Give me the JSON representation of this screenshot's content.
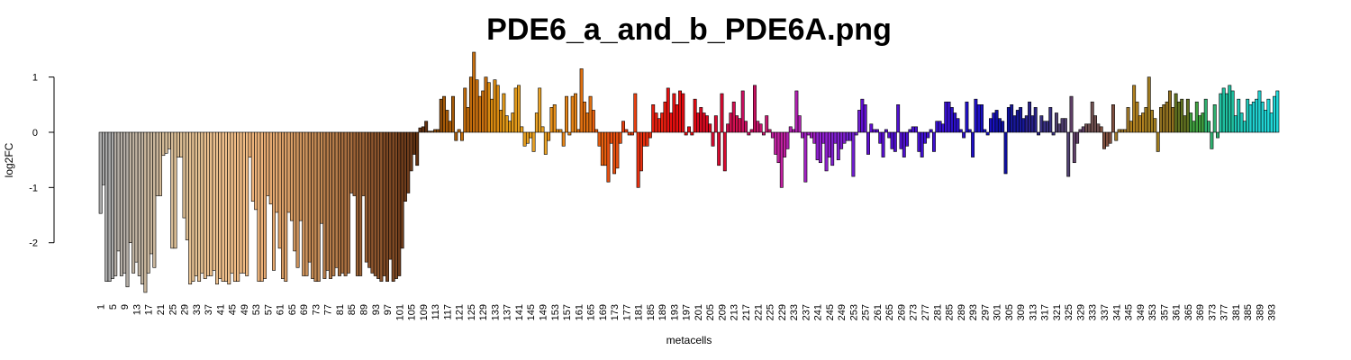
{
  "chart_data": {
    "type": "bar",
    "title": "PDE6_a_and_b_PDE6A.png",
    "xlabel": "metacells",
    "ylabel": "log2FC",
    "ylim": [
      -2.95,
      1.45
    ],
    "yticks": [
      -2,
      -1,
      0,
      1
    ],
    "categories": [
      "1",
      null,
      null,
      null,
      "5",
      null,
      null,
      null,
      "9",
      null,
      null,
      null,
      "13",
      null,
      null,
      null,
      "17",
      null,
      null,
      null,
      "21",
      null,
      null,
      null,
      "25",
      null,
      null,
      null,
      "29",
      null,
      null,
      null,
      "33",
      null,
      null,
      null,
      "37",
      null,
      null,
      null,
      "41",
      null,
      null,
      null,
      "45",
      null,
      null,
      null,
      "49",
      null,
      null,
      null,
      "53",
      null,
      null,
      null,
      "57",
      null,
      null,
      null,
      "61",
      null,
      null,
      null,
      "65",
      null,
      null,
      null,
      "69",
      null,
      null,
      null,
      "73",
      null,
      null,
      null,
      "77",
      null,
      null,
      null,
      "81",
      null,
      null,
      null,
      "85",
      null,
      null,
      null,
      "89",
      null,
      null,
      null,
      "93",
      null,
      null,
      null,
      "97",
      null,
      null,
      null,
      "101",
      null,
      null,
      null,
      "105",
      null,
      null,
      null,
      "109",
      null,
      null,
      null,
      "113",
      null,
      null,
      null,
      "117",
      null,
      null,
      null,
      "121",
      null,
      null,
      null,
      "125",
      null,
      null,
      null,
      "129",
      null,
      null,
      null,
      "133",
      null,
      null,
      null,
      "137",
      null,
      null,
      null,
      "141",
      null,
      null,
      null,
      "145",
      null,
      null,
      null,
      "149",
      null,
      null,
      null,
      "153",
      null,
      null,
      null,
      "157",
      null,
      null,
      null,
      "161",
      null,
      null,
      null,
      "165",
      null,
      null,
      null,
      "169",
      null,
      null,
      null,
      "173",
      null,
      null,
      null,
      "177",
      null,
      null,
      null,
      "181",
      null,
      null,
      null,
      "185",
      null,
      null,
      null,
      "189",
      null,
      null,
      null,
      "193",
      null,
      null,
      null,
      "197",
      null,
      null,
      null,
      "201",
      null,
      null,
      null,
      "205",
      null,
      null,
      null,
      "209",
      null,
      null,
      null,
      "213",
      null,
      null,
      null,
      "217",
      null,
      null,
      null,
      "221",
      null,
      null,
      null,
      "225",
      null,
      null,
      null,
      "229",
      null,
      null,
      null,
      "233",
      null,
      null,
      null,
      "237",
      null,
      null,
      null,
      "241",
      null,
      null,
      null,
      "245",
      null,
      null,
      null,
      "249",
      null,
      null,
      null,
      "253",
      null,
      null,
      null,
      "257",
      null,
      null,
      null,
      "261",
      null,
      null,
      null,
      "265",
      null,
      null,
      null,
      "269",
      null,
      null,
      null,
      "273",
      null,
      null,
      null,
      "277",
      null,
      null,
      null,
      "281",
      null,
      null,
      null,
      "285",
      null,
      null,
      null,
      "289",
      null,
      null,
      null,
      "293",
      null,
      null,
      null,
      "297",
      null,
      null,
      null,
      "301",
      null,
      null,
      null,
      "305",
      null,
      null,
      null,
      "309",
      null,
      null,
      null,
      "313",
      null,
      null,
      null,
      "317",
      null,
      null,
      null,
      "321",
      null,
      null,
      null,
      "325",
      null,
      null,
      null,
      "329",
      null,
      null,
      null,
      "333",
      null,
      null,
      null,
      "337",
      null,
      null,
      null,
      "341",
      null,
      null,
      null,
      "345",
      null,
      null,
      null,
      "349",
      null,
      null,
      null,
      "353",
      null,
      null,
      null,
      "357",
      null,
      null,
      null,
      "361",
      null,
      null,
      null,
      "365",
      null,
      null,
      null,
      "369",
      null,
      null,
      null,
      "373",
      null,
      null,
      null,
      "377",
      null,
      null,
      null,
      "381",
      null,
      null,
      null,
      "385",
      null,
      null,
      null,
      "389",
      null,
      null,
      null,
      "393",
      null,
      null
    ],
    "values": [
      -1.47,
      -0.95,
      -2.7,
      -2.7,
      -2.65,
      -2.6,
      -2.15,
      -2.6,
      -2.55,
      -2.8,
      -2.0,
      -2.55,
      -2.35,
      -2.6,
      -2.75,
      -2.9,
      -2.55,
      -2.2,
      -2.45,
      -1.15,
      -1.15,
      -0.42,
      -0.38,
      -0.3,
      -2.1,
      -2.1,
      -0.45,
      -0.45,
      -1.55,
      -1.95,
      -2.75,
      -2.7,
      -2.6,
      -2.7,
      -2.55,
      -2.65,
      -2.6,
      -2.6,
      -2.5,
      -2.75,
      -2.65,
      -2.7,
      -2.7,
      -2.75,
      -2.55,
      -2.7,
      -2.7,
      -2.55,
      -2.55,
      -2.6,
      -0.45,
      -1.25,
      -1.4,
      -2.7,
      -2.7,
      -2.65,
      -1.15,
      -1.3,
      -2.5,
      -1.45,
      -2.1,
      -2.65,
      -2.7,
      -1.45,
      -1.6,
      -2.15,
      -2.45,
      -1.6,
      -2.6,
      -2.6,
      -2.35,
      -2.65,
      -2.7,
      -2.7,
      -1.65,
      -2.65,
      -2.5,
      -2.65,
      -2.6,
      -2.45,
      -2.6,
      -2.55,
      -2.6,
      -2.55,
      -1.1,
      -1.15,
      -2.6,
      -2.6,
      -1.15,
      -2.35,
      -2.45,
      -2.55,
      -2.6,
      -2.65,
      -2.7,
      -2.6,
      -2.7,
      -2.3,
      -2.7,
      -2.65,
      -2.6,
      -2.1,
      -1.25,
      -1.1,
      -0.7,
      -0.4,
      -0.6,
      0.08,
      0.1,
      0.2,
      0.02,
      0.02,
      0.05,
      0.05,
      0.6,
      0.65,
      0.4,
      0.2,
      0.65,
      -0.15,
      0.05,
      -0.15,
      0.8,
      0.45,
      1.0,
      1.45,
      0.95,
      0.65,
      0.75,
      1.0,
      0.9,
      0.6,
      0.95,
      0.85,
      0.4,
      0.7,
      0.3,
      0.2,
      0.35,
      0.8,
      0.85,
      0.1,
      -0.25,
      -0.2,
      -0.1,
      -0.35,
      0.35,
      0.8,
      0.1,
      -0.4,
      -0.15,
      0.45,
      0.5,
      0.05,
      0.05,
      -0.25,
      0.65,
      -0.05,
      0.65,
      0.7,
      0.05,
      1.15,
      0.55,
      0.35,
      0.65,
      0.4,
      0.05,
      -0.25,
      -0.6,
      -0.6,
      -0.9,
      -0.2,
      -0.75,
      -0.65,
      -0.2,
      0.2,
      0.05,
      -0.05,
      -0.05,
      0.7,
      -1.0,
      -0.7,
      -0.25,
      -0.25,
      -0.1,
      0.5,
      0.35,
      0.25,
      0.35,
      0.55,
      0.8,
      0.35,
      0.7,
      0.5,
      0.75,
      0.7,
      -0.05,
      0.1,
      -0.05,
      0.6,
      0.35,
      0.45,
      0.35,
      0.3,
      0.15,
      -0.25,
      0.3,
      -0.6,
      0.7,
      -0.7,
      0.15,
      0.35,
      0.55,
      0.3,
      0.25,
      0.75,
      0.2,
      -0.05,
      0.05,
      0.85,
      0.2,
      0.15,
      -0.05,
      0.3,
      0.05,
      -0.1,
      -0.4,
      -0.55,
      -1.0,
      -0.45,
      -0.3,
      0.1,
      0.05,
      0.75,
      0.3,
      -0.1,
      -0.9,
      -0.05,
      -0.1,
      -0.2,
      -0.5,
      -0.55,
      -0.2,
      -0.7,
      -0.45,
      -0.6,
      -0.2,
      -0.5,
      -0.3,
      -0.2,
      -0.15,
      -0.15,
      -0.8,
      -0.05,
      0.4,
      0.6,
      0.5,
      -0.4,
      0.15,
      0.05,
      0.05,
      -0.2,
      -0.45,
      0.05,
      -0.1,
      -0.3,
      -0.35,
      0.5,
      -0.3,
      -0.45,
      -0.25,
      0.05,
      0.1,
      0.1,
      -0.35,
      -0.45,
      -0.2,
      -0.1,
      0.05,
      -0.35,
      0.2,
      0.2,
      0.15,
      0.55,
      0.55,
      0.45,
      0.35,
      0.25,
      0.05,
      -0.1,
      0.55,
      0.05,
      -0.45,
      0.6,
      0.5,
      0.5,
      0.05,
      -0.05,
      0.25,
      0.35,
      0.4,
      0.25,
      0.2,
      -0.75,
      0.45,
      0.5,
      0.3,
      0.4,
      0.45,
      0.25,
      0.3,
      0.55,
      0.3,
      0.45,
      -0.05,
      0.3,
      0.2,
      0.2,
      0.45,
      -0.05,
      0.35,
      0.15,
      0.25,
      0.25,
      -0.8,
      0.65,
      -0.55,
      -0.2,
      0.05,
      0.1,
      0.15,
      0.15,
      0.55,
      0.3,
      0.15,
      0.1,
      -0.3,
      -0.25,
      -0.2,
      0.5,
      -0.15,
      0.05,
      0.05,
      0.05,
      0.45,
      0.2,
      0.85,
      0.55,
      0.3,
      0.35,
      0.45,
      1.0,
      0.4,
      0.25,
      -0.35,
      0.45,
      0.5,
      0.55,
      0.75,
      0.45,
      0.7,
      0.55,
      0.6,
      0.3,
      0.6,
      0.35,
      0.2,
      0.55,
      0.3,
      0.35,
      0.6,
      0.2,
      -0.3,
      0.5,
      -0.1,
      0.7,
      0.8,
      0.7,
      0.85,
      0.75,
      0.3,
      0.6,
      0.35,
      0.2,
      0.6,
      0.5,
      0.55,
      0.6,
      0.75,
      0.55,
      0.4,
      0.6,
      0.35,
      0.65,
      0.75
    ],
    "colors": [
      "#a9a9a9",
      "#a9a9a9",
      "#a9a9a9",
      "#a9a9a9",
      "#a9a9a9",
      "#b5aea6",
      "#b5aea6",
      "#b5aea6",
      "#b5aea6",
      "#b5aea6",
      "#c0b3a2",
      "#c0b3a2",
      "#c0b3a2",
      "#c0b3a2",
      "#c0b3a2",
      "#c9b69c",
      "#c9b69c",
      "#c9b69c",
      "#c9b69c",
      "#c9b69c",
      "#d4bb98",
      "#d4bb98",
      "#d4bb98",
      "#d4bb98",
      "#d4bb98",
      "#dcbe94",
      "#dcbe94",
      "#dcbe94",
      "#dcbe94",
      "#dcbe94",
      "#e4c092",
      "#e4c092",
      "#e4c092",
      "#e4c092",
      "#e4c092",
      "#eabf8e",
      "#eabf8e",
      "#eabf8e",
      "#eabf8e",
      "#eabf8e",
      "#f0c08c",
      "#f0c08c",
      "#f0c08c",
      "#f0c08c",
      "#f0c08c",
      "#f2bd86",
      "#f2bd86",
      "#f2bd86",
      "#f2bd86",
      "#f2bd86",
      "#eeb47c",
      "#eeb47c",
      "#eeb47c",
      "#eeb47c",
      "#eeb47c",
      "#e6aa72",
      "#e6aa72",
      "#e6aa72",
      "#e6aa72",
      "#e6aa72",
      "#dba068",
      "#dba068",
      "#dba068",
      "#dba068",
      "#dba068",
      "#cf955e",
      "#cf955e",
      "#cf955e",
      "#cf955e",
      "#cf955e",
      "#c28954",
      "#c28954",
      "#c28954",
      "#c28954",
      "#c28954",
      "#b57c4a",
      "#b57c4a",
      "#b57c4a",
      "#b57c4a",
      "#b57c4a",
      "#a86f40",
      "#a86f40",
      "#a86f40",
      "#a86f40",
      "#a86f40",
      "#9a6236",
      "#9a6236",
      "#9a6236",
      "#9a6236",
      "#9a6236",
      "#8c552d",
      "#8c552d",
      "#8c552d",
      "#8c552d",
      "#8c552d",
      "#7e4924",
      "#7e4924",
      "#7e4924",
      "#7e4924",
      "#7e4924",
      "#6f3d1c",
      "#6f3d1c",
      "#6f3d1c",
      "#6f3d1c",
      "#6f3d1c",
      "#613212",
      "#613212",
      "#613212",
      "#613212",
      "#613212",
      "#8a4a0a",
      "#8a4a0a",
      "#8a4a0a",
      "#8a4a0a",
      "#8a4a0a",
      "#a65a08",
      "#a65a08",
      "#a65a08",
      "#a65a08",
      "#a65a08",
      "#c06a0a",
      "#c06a0a",
      "#c06a0a",
      "#c06a0a",
      "#c06a0a",
      "#c87010",
      "#c87010",
      "#c87010",
      "#c87010",
      "#c87010",
      "#d98a10",
      "#d98a10",
      "#d98a10",
      "#d98a10",
      "#d98a10",
      "#e09818",
      "#e09818",
      "#e09818",
      "#e09818",
      "#e09818",
      "#e8a020",
      "#e8a020",
      "#e8a020",
      "#e8a020",
      "#e8a020",
      "#eba428",
      "#eba428",
      "#eba428",
      "#eba428",
      "#eba428",
      "#e89018",
      "#e89018",
      "#e89018",
      "#e89018",
      "#e89018",
      "#e58418",
      "#e58418",
      "#e58418",
      "#e58418",
      "#e58418",
      "#e07010",
      "#e07010",
      "#e07010",
      "#e07010",
      "#e07010",
      "#e86010",
      "#e86010",
      "#e86010",
      "#e86010",
      "#e86010",
      "#e85010",
      "#e85010",
      "#e85010",
      "#e85010",
      "#e85010",
      "#e84010",
      "#e84010",
      "#e84010",
      "#e84010",
      "#e84010",
      "#e83010",
      "#e83010",
      "#e83010",
      "#e83010",
      "#e83010",
      "#e82010",
      "#e82010",
      "#e82010",
      "#e82010",
      "#e82010",
      "#e81010",
      "#e81010",
      "#e81010",
      "#e81010",
      "#e81010",
      "#e00a10",
      "#e00a10",
      "#e00a10",
      "#e00a10",
      "#e00a10",
      "#d80a20",
      "#d80a20",
      "#d80a20",
      "#d80a20",
      "#d80a20",
      "#d80a30",
      "#d80a30",
      "#d80a30",
      "#d80a30",
      "#d80a30",
      "#d01050",
      "#d01050",
      "#d01050",
      "#d01050",
      "#d01050",
      "#c81060",
      "#c81060",
      "#c81060",
      "#c81060",
      "#c81060",
      "#c81870",
      "#c81870",
      "#c81870",
      "#c81870",
      "#c81870",
      "#c020a0",
      "#c020a0",
      "#c020a0",
      "#c020a0",
      "#c020a0",
      "#b020b0",
      "#b020b0",
      "#b020b0",
      "#b020b0",
      "#b020b0",
      "#a020c0",
      "#a020c0",
      "#a020c0",
      "#a020c0",
      "#a020c0",
      "#9020d0",
      "#9020d0",
      "#9020d0",
      "#9020d0",
      "#9020d0",
      "#8020d0",
      "#8020d0",
      "#8020d0",
      "#8020d0",
      "#8020d0",
      "#7020d0",
      "#7020d0",
      "#7020d0",
      "#7020d0",
      "#7020d0",
      "#6010d0",
      "#6010d0",
      "#6010d0",
      "#6010d0",
      "#6010d0",
      "#5810d0",
      "#5810d0",
      "#5810d0",
      "#5810d0",
      "#5810d0",
      "#5010d0",
      "#5010d0",
      "#5010d0",
      "#5010d0",
      "#5010d0",
      "#4810d0",
      "#4810d0",
      "#4810d0",
      "#4810d0",
      "#4810d0",
      "#4010d0",
      "#4010d0",
      "#4010d0",
      "#4010d0",
      "#4010d0",
      "#3810d0",
      "#3810d0",
      "#3810d0",
      "#3810d0",
      "#3810d0",
      "#2c10c8",
      "#2c10c8",
      "#2c10c8",
      "#2c10c8",
      "#2c10c8",
      "#2010c8",
      "#2010c8",
      "#2010c8",
      "#2010c8",
      "#2010c8",
      "#1810c0",
      "#1810c0",
      "#1810c0",
      "#1810c0",
      "#1810c0",
      "#1010a0",
      "#1010a0",
      "#1010a0",
      "#1010a0",
      "#1010a0",
      "#181898",
      "#181898",
      "#181898",
      "#181898",
      "#181898",
      "#282088",
      "#282088",
      "#282088",
      "#282088",
      "#282088",
      "#383080",
      "#383080",
      "#383080",
      "#383080",
      "#383080",
      "#504070",
      "#504070",
      "#504070",
      "#504070",
      "#504070",
      "#604068",
      "#604068",
      "#604068",
      "#604068",
      "#604068",
      "#705050",
      "#705050",
      "#705050",
      "#705050",
      "#705050",
      "#805040",
      "#805040",
      "#805040",
      "#805040",
      "#805040",
      "#a07828",
      "#a07828",
      "#a07828",
      "#a07828",
      "#a07828",
      "#b08020",
      "#b08020",
      "#b08020",
      "#b08020",
      "#b08020",
      "#a07c20",
      "#a07c20",
      "#a07c20",
      "#a07c20",
      "#a07c20",
      "#907020",
      "#907020",
      "#907020",
      "#907020",
      "#907020",
      "#607020",
      "#607020",
      "#607020",
      "#607020",
      "#607020",
      "#40a040",
      "#40a040",
      "#40a040",
      "#40a040",
      "#40a040",
      "#30b070",
      "#30b070",
      "#30b070",
      "#30b070",
      "#30b070",
      "#20c0a0",
      "#20c0a0",
      "#20c0a0",
      "#20c0a0",
      "#20c0a0",
      "#20c8b8",
      "#20c8b8",
      "#20c8b8",
      "#20c8b8",
      "#20c8b8",
      "#20d0d0",
      "#20d0d0",
      "#20d0d0",
      "#20d0d0",
      "#20d0d0",
      "#20d8d8",
      "#20d8d8",
      "#20d8d8",
      "#20d8d8",
      "#20d8d8"
    ]
  }
}
